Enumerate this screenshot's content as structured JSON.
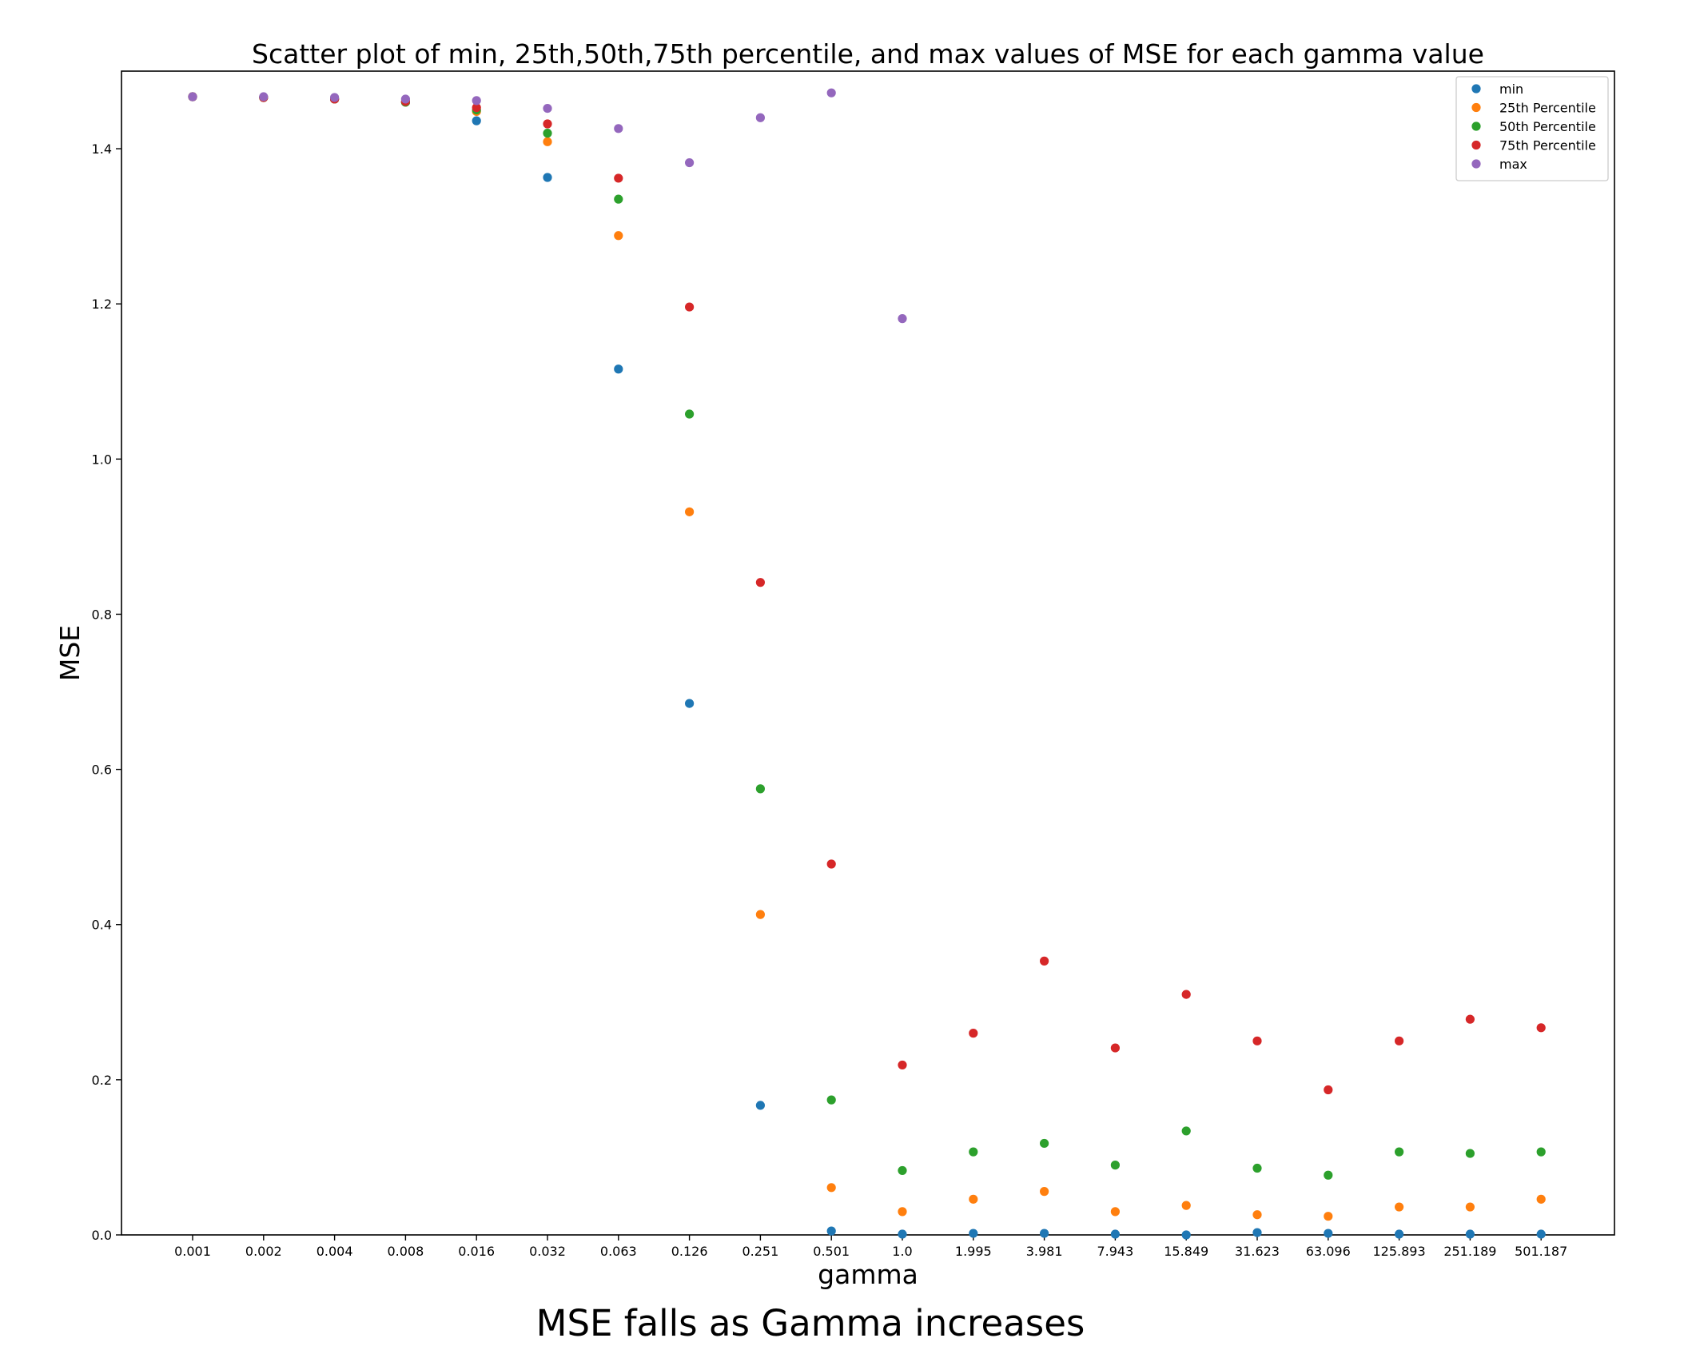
{
  "caption": "MSE falls as Gamma increases",
  "chart_data": {
    "type": "scatter",
    "title": "Scatter plot of min, 25th,50th,75th percentile, and max values of MSE for each gamma value",
    "xlabel": "gamma",
    "ylabel": "MSE",
    "x_scale": "categorical",
    "categories": [
      "0.001",
      "0.002",
      "0.004",
      "0.008",
      "0.016",
      "0.032",
      "0.063",
      "0.126",
      "0.251",
      "0.501",
      "1.0",
      "1.995",
      "3.981",
      "7.943",
      "15.849",
      "31.623",
      "63.096",
      "125.893",
      "251.189",
      "501.187"
    ],
    "ylim": [
      0,
      1.5
    ],
    "yticks": [
      0.0,
      0.2,
      0.4,
      0.6,
      0.8,
      1.0,
      1.2,
      1.4
    ],
    "ytick_labels": [
      "0.0",
      "0.2",
      "0.4",
      "0.6",
      "0.8",
      "1.0",
      "1.2",
      "1.4"
    ],
    "grid": false,
    "legend_position": "top-right",
    "series": [
      {
        "name": "min",
        "color": "#1f77b4",
        "values": [
          1.467,
          1.466,
          1.464,
          1.46,
          1.436,
          1.363,
          1.116,
          0.685,
          0.167,
          0.005,
          0.001,
          0.002,
          0.002,
          0.001,
          0.0,
          0.003,
          0.002,
          0.001,
          0.001,
          0.001
        ]
      },
      {
        "name": "25th Percentile",
        "color": "#ff7f0e",
        "values": [
          1.467,
          1.466,
          1.464,
          1.46,
          1.448,
          1.409,
          1.288,
          0.932,
          0.413,
          0.061,
          0.03,
          0.046,
          0.056,
          0.03,
          0.038,
          0.026,
          0.024,
          0.036,
          0.036,
          0.046
        ]
      },
      {
        "name": "50th Percentile",
        "color": "#2ca02c",
        "values": [
          1.467,
          1.466,
          1.464,
          1.46,
          1.45,
          1.42,
          1.335,
          1.058,
          0.575,
          0.174,
          0.083,
          0.107,
          0.118,
          0.09,
          0.134,
          0.086,
          0.077,
          0.107,
          0.105,
          0.107
        ]
      },
      {
        "name": "75th Percentile",
        "color": "#d62728",
        "values": [
          1.467,
          1.466,
          1.464,
          1.461,
          1.453,
          1.432,
          1.362,
          1.196,
          0.841,
          0.478,
          0.219,
          0.26,
          0.353,
          0.241,
          0.31,
          0.25,
          0.187,
          0.25,
          0.278,
          0.267
        ]
      },
      {
        "name": "max",
        "color": "#9467bd",
        "values": [
          1.467,
          1.467,
          1.466,
          1.464,
          1.462,
          1.452,
          1.426,
          1.382,
          1.44,
          1.472,
          1.181,
          null,
          null,
          null,
          null,
          null,
          null,
          null,
          null,
          null
        ]
      }
    ]
  }
}
